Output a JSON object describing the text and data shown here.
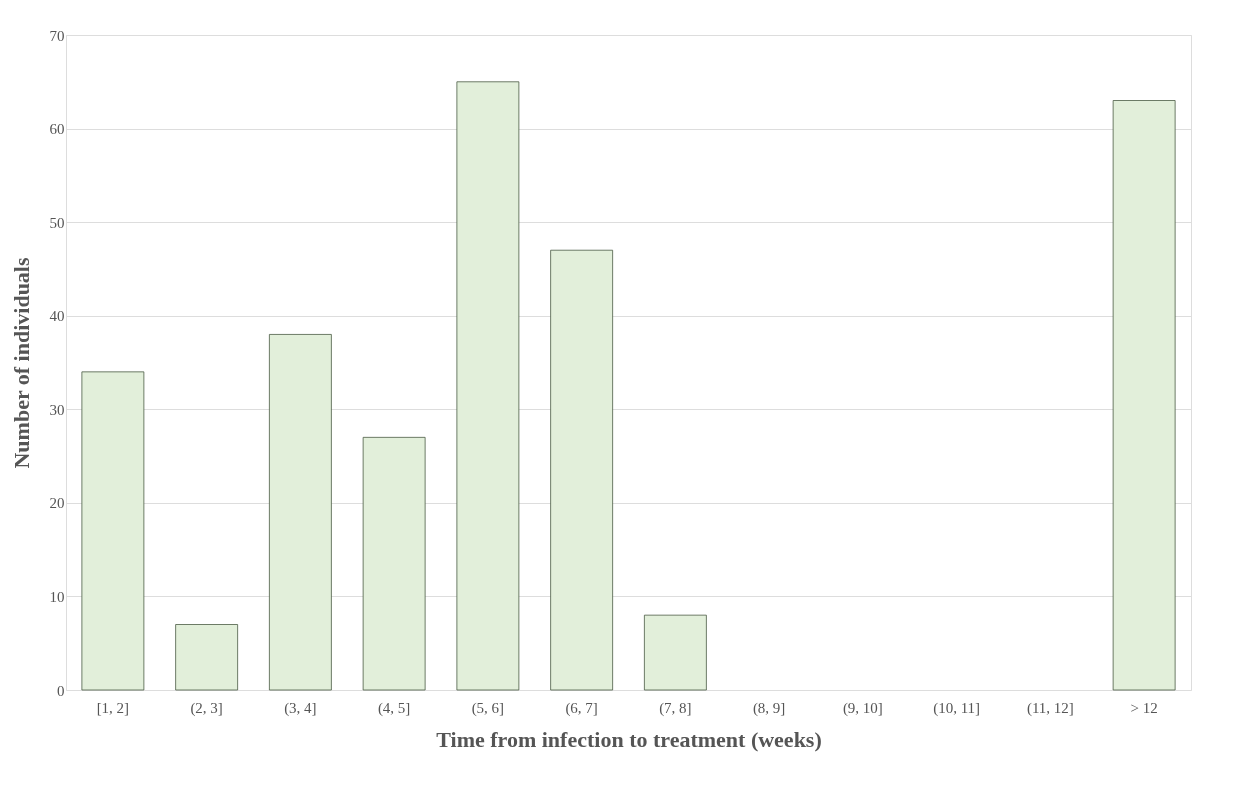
{
  "chart_data": {
    "type": "bar",
    "xlabel": "Time from infection to treatment (weeks)",
    "ylabel": "Number of individuals",
    "categories": [
      "[1, 2]",
      "(2, 3]",
      "(3, 4]",
      "(4, 5]",
      "(5, 6]",
      "(6, 7]",
      "(7, 8]",
      "(8, 9]",
      "(9, 10]",
      "(10, 11]",
      "(11, 12]",
      "> 12"
    ],
    "series": [
      {
        "color": "#e2efda",
        "values": [
          34,
          7,
          38,
          27,
          65,
          47,
          8,
          0,
          0,
          0,
          0,
          63
        ]
      }
    ],
    "ylim": [
      0,
      70
    ],
    "yticks": [
      0,
      10,
      20,
      30,
      40,
      50,
      60,
      70
    ],
    "grid": "y",
    "legend": false
  }
}
